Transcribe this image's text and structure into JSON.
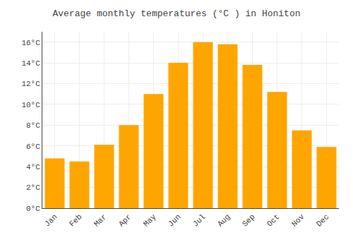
{
  "chart_data": {
    "type": "bar",
    "title": "Average monthly temperatures (°C ) in Honiton",
    "categories": [
      "Jan",
      "Feb",
      "Mar",
      "Apr",
      "May",
      "Jun",
      "Jul",
      "Aug",
      "Sep",
      "Oct",
      "Nov",
      "Dec"
    ],
    "values": [
      4.8,
      4.5,
      6.1,
      8.0,
      11.0,
      14.0,
      16.0,
      15.8,
      13.8,
      11.2,
      7.5,
      5.9
    ],
    "color": "#FFA500",
    "ylim": [
      0,
      17
    ],
    "yticks": [
      {
        "value": 0,
        "label": "0°C"
      },
      {
        "value": 2,
        "label": "2°C"
      },
      {
        "value": 4,
        "label": "4°C"
      },
      {
        "value": 6,
        "label": "6°C"
      },
      {
        "value": 8,
        "label": "8°C"
      },
      {
        "value": 10,
        "label": "10°C"
      },
      {
        "value": 12,
        "label": "12°C"
      },
      {
        "value": 14,
        "label": "14°C"
      },
      {
        "value": 16,
        "label": "16°C"
      }
    ],
    "grid": true
  }
}
